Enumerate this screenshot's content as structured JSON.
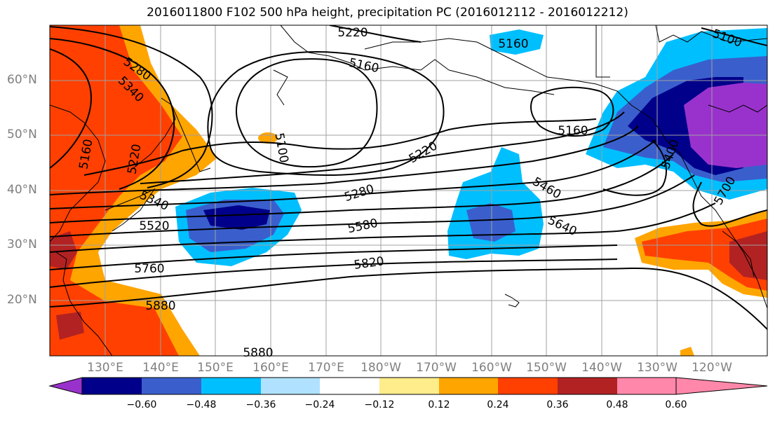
{
  "title": "2016011800 F102 500 hPa height, precipitation PC (2016012112 - 2016012212)",
  "latitude_labels": [
    "60°N",
    "50°N",
    "40°N",
    "30°N",
    "20°N"
  ],
  "longitude_labels": [
    "130°E",
    "140°E",
    "150°E",
    "160°E",
    "170°E",
    "180°W",
    "170°W",
    "160°W",
    "150°W",
    "140°W",
    "130°W",
    "120°W"
  ],
  "contour_labels": [
    "5220",
    "5160",
    "5160",
    "5160",
    "5100",
    "5280",
    "5340",
    "5160",
    "5220",
    "5100",
    "5220",
    "5280",
    "5460",
    "5340",
    "5520",
    "5580",
    "5640",
    "5400",
    "5700",
    "5760",
    "5820",
    "5880",
    "5880"
  ],
  "colorbar": {
    "tick_labels": [
      "−0.60",
      "−0.48",
      "−0.36",
      "−0.24",
      "−0.12",
      "0.12",
      "0.24",
      "0.36",
      "0.48",
      "0.60"
    ],
    "colors": [
      "#9932CC",
      "#00008B",
      "#3A5FCD",
      "#00BFFF",
      "#B0E2FF",
      "#FFFFFF",
      "#FFEC8B",
      "#FFA500",
      "#FF4000",
      "#B22222",
      "#FF88AA"
    ]
  }
}
